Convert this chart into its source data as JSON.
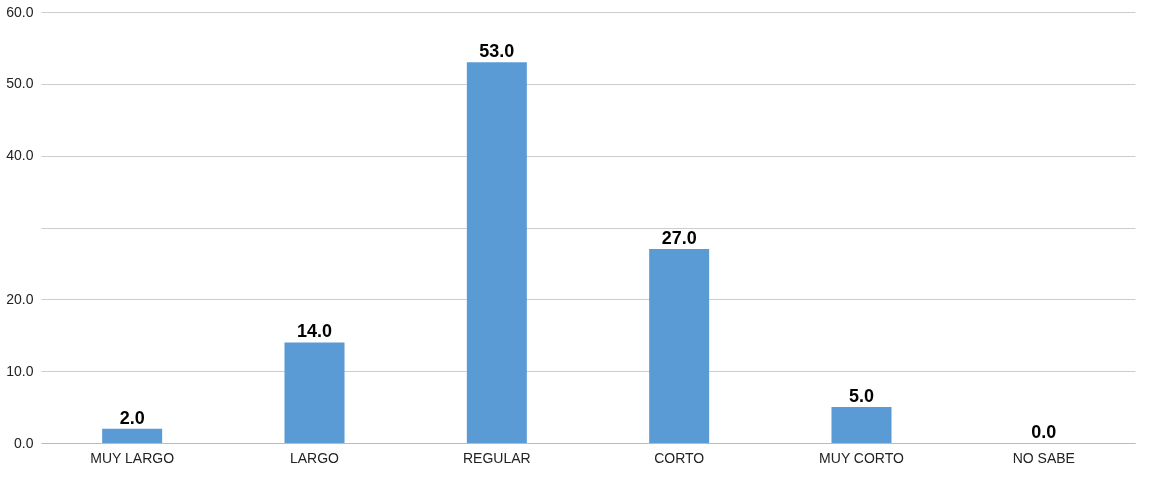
{
  "chart_data": {
    "type": "bar",
    "categories": [
      "MUY LARGO",
      "LARGO",
      "REGULAR",
      "CORTO",
      "MUY CORTO",
      "NO SABE"
    ],
    "values": [
      2,
      14,
      53,
      27,
      5,
      0
    ],
    "value_labels": [
      "2.0",
      "14.0",
      "53.0",
      "27.0",
      "5.0",
      "0.0"
    ],
    "color": "#5b9bd5",
    "ylim": [
      0,
      60
    ],
    "yticks": [
      {
        "value": 0,
        "label": "0.0"
      },
      {
        "value": 10,
        "label": "10.0"
      },
      {
        "value": 20,
        "label": "20.0"
      },
      {
        "value": 30,
        "label": null
      },
      {
        "value": 40,
        "label": "40.0"
      },
      {
        "value": 50,
        "label": "50.0"
      },
      {
        "value": 60,
        "label": "60.0"
      }
    ],
    "grid": "y"
  }
}
